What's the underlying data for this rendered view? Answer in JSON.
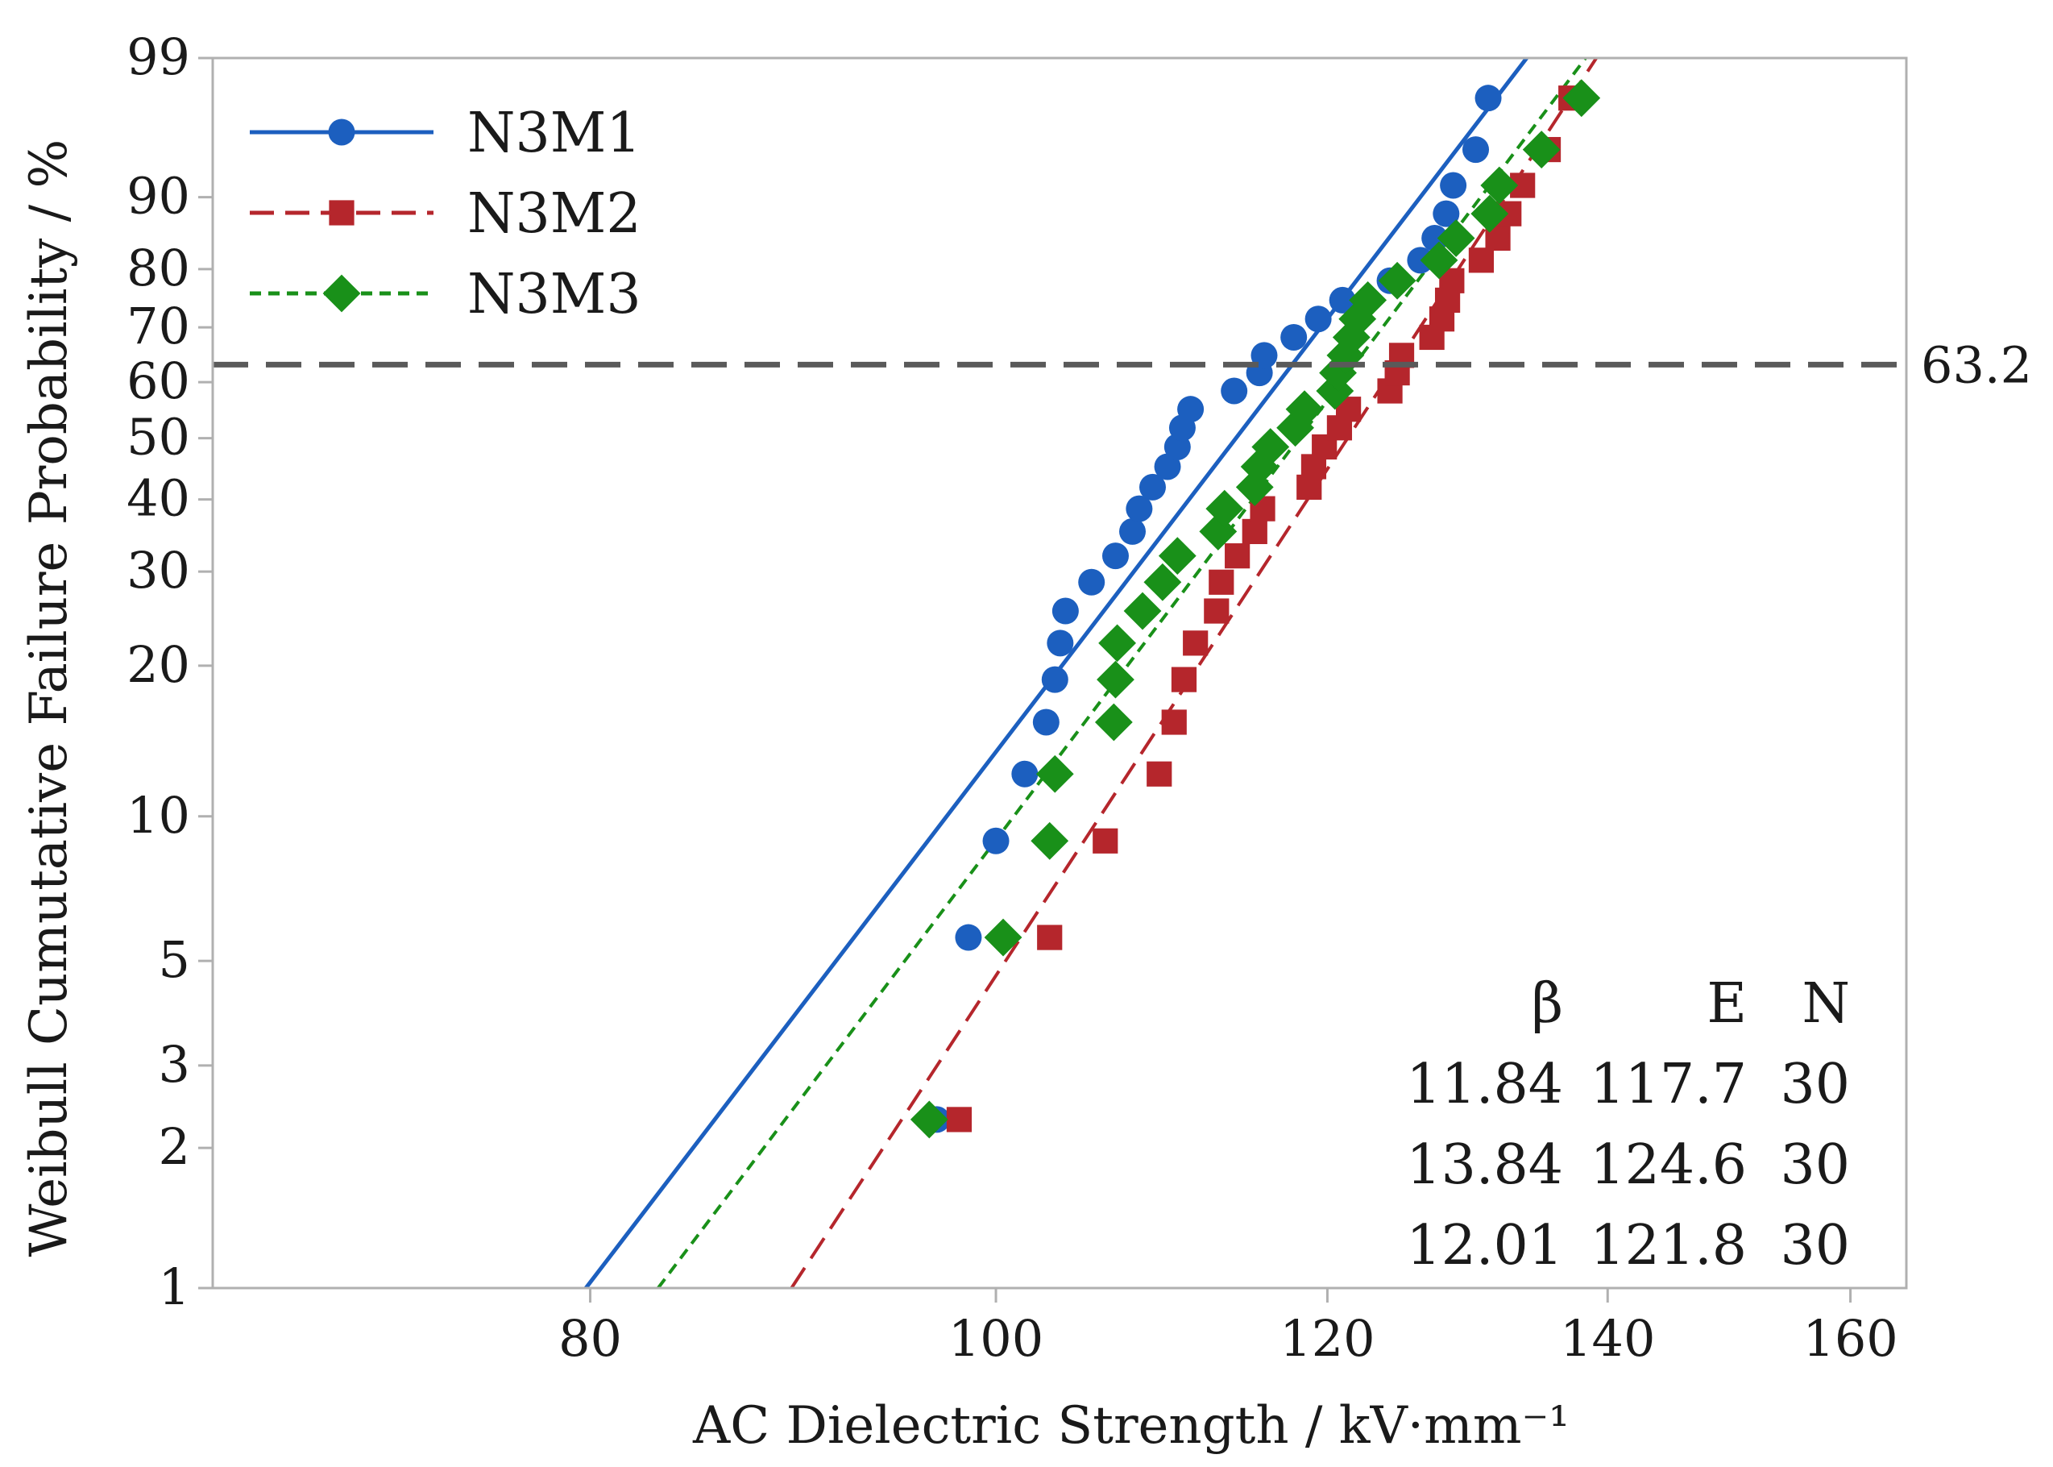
{
  "chart_data": {
    "type": "scatter",
    "subtype": "weibull probability plot",
    "xlabel": "AC Dielectric Strength / kV·mm⁻¹",
    "ylabel": "Weibull Cumutative Failure Probability / %",
    "xlim": [
      65,
      165
    ],
    "ylim": [
      1,
      99
    ],
    "y_scale": "weibull",
    "x_scale": "log",
    "x_ticks": [
      80,
      100,
      120,
      140,
      160
    ],
    "y_ticks": [
      1,
      2,
      3,
      5,
      10,
      20,
      30,
      40,
      50,
      60,
      70,
      80,
      90,
      99
    ],
    "reference_line": {
      "y": 63.2,
      "label": "63.2",
      "style": "dashed",
      "color": "#5a5a5a"
    },
    "legend_position": "top-left",
    "grid": false,
    "series": [
      {
        "name": "N3M1",
        "color": "#1c5fbf",
        "marker": "circle",
        "line": "solid",
        "beta": 11.84,
        "eta": 117.7,
        "n": 30,
        "points": [
          [
            96.8,
            2.3
          ],
          [
            98.5,
            5.6
          ],
          [
            100.0,
            8.9
          ],
          [
            101.6,
            12.2
          ],
          [
            102.8,
            15.5
          ],
          [
            103.3,
            18.8
          ],
          [
            103.6,
            22.1
          ],
          [
            103.9,
            25.4
          ],
          [
            105.4,
            28.7
          ],
          [
            106.8,
            32.0
          ],
          [
            107.8,
            35.3
          ],
          [
            108.2,
            38.6
          ],
          [
            109.0,
            41.9
          ],
          [
            109.9,
            45.2
          ],
          [
            110.5,
            48.5
          ],
          [
            110.8,
            51.8
          ],
          [
            111.3,
            55.1
          ],
          [
            114.0,
            58.4
          ],
          [
            115.6,
            61.7
          ],
          [
            115.9,
            64.9
          ],
          [
            117.8,
            68.2
          ],
          [
            119.4,
            71.5
          ],
          [
            121.0,
            74.8
          ],
          [
            124.2,
            78.1
          ],
          [
            126.3,
            81.4
          ],
          [
            127.3,
            84.7
          ],
          [
            128.1,
            88.0
          ],
          [
            128.6,
            91.3
          ],
          [
            130.2,
            94.6
          ],
          [
            131.1,
            97.7
          ]
        ]
      },
      {
        "name": "N3M2",
        "color": "#b5262c",
        "marker": "square",
        "line": "dashed",
        "beta": 13.84,
        "eta": 124.6,
        "n": 30,
        "points": [
          [
            98.0,
            2.3
          ],
          [
            103.0,
            5.6
          ],
          [
            106.2,
            8.9
          ],
          [
            109.4,
            12.2
          ],
          [
            110.3,
            15.5
          ],
          [
            110.9,
            18.8
          ],
          [
            111.6,
            22.1
          ],
          [
            112.9,
            25.4
          ],
          [
            113.2,
            28.7
          ],
          [
            114.2,
            32.0
          ],
          [
            115.3,
            35.3
          ],
          [
            115.8,
            38.6
          ],
          [
            118.8,
            41.9
          ],
          [
            119.1,
            45.2
          ],
          [
            119.8,
            48.5
          ],
          [
            120.8,
            51.8
          ],
          [
            121.4,
            55.1
          ],
          [
            124.2,
            58.4
          ],
          [
            124.7,
            61.7
          ],
          [
            125.0,
            64.9
          ],
          [
            127.1,
            68.2
          ],
          [
            127.8,
            71.5
          ],
          [
            128.2,
            74.8
          ],
          [
            128.5,
            78.1
          ],
          [
            130.6,
            81.4
          ],
          [
            131.8,
            84.7
          ],
          [
            132.6,
            88.0
          ],
          [
            133.6,
            91.3
          ],
          [
            135.5,
            94.6
          ],
          [
            137.2,
            97.7
          ]
        ]
      },
      {
        "name": "N3M3",
        "color": "#199019",
        "marker": "diamond",
        "line": "dotted",
        "beta": 12.01,
        "eta": 121.8,
        "n": 30,
        "points": [
          [
            96.4,
            2.3
          ],
          [
            100.4,
            5.6
          ],
          [
            103.0,
            8.9
          ],
          [
            103.3,
            12.2
          ],
          [
            106.7,
            15.5
          ],
          [
            106.8,
            18.8
          ],
          [
            106.9,
            22.1
          ],
          [
            108.4,
            25.4
          ],
          [
            109.6,
            28.7
          ],
          [
            110.5,
            32.0
          ],
          [
            113.0,
            35.3
          ],
          [
            113.4,
            38.6
          ],
          [
            115.3,
            41.9
          ],
          [
            115.6,
            45.2
          ],
          [
            116.3,
            48.5
          ],
          [
            117.9,
            51.8
          ],
          [
            118.5,
            55.1
          ],
          [
            120.5,
            58.4
          ],
          [
            120.7,
            61.7
          ],
          [
            121.2,
            64.9
          ],
          [
            121.6,
            68.2
          ],
          [
            122.0,
            71.5
          ],
          [
            122.7,
            74.8
          ],
          [
            124.7,
            78.1
          ],
          [
            127.6,
            81.4
          ],
          [
            128.8,
            84.7
          ],
          [
            131.2,
            88.0
          ],
          [
            131.9,
            91.3
          ],
          [
            135.0,
            94.6
          ],
          [
            138.0,
            97.7
          ]
        ]
      }
    ],
    "table": {
      "headers": [
        "β",
        "E",
        "N"
      ],
      "rows": [
        [
          "11.84",
          "117.7",
          "30"
        ],
        [
          "13.84",
          "124.6",
          "30"
        ],
        [
          "12.01",
          "121.8",
          "30"
        ]
      ]
    }
  }
}
